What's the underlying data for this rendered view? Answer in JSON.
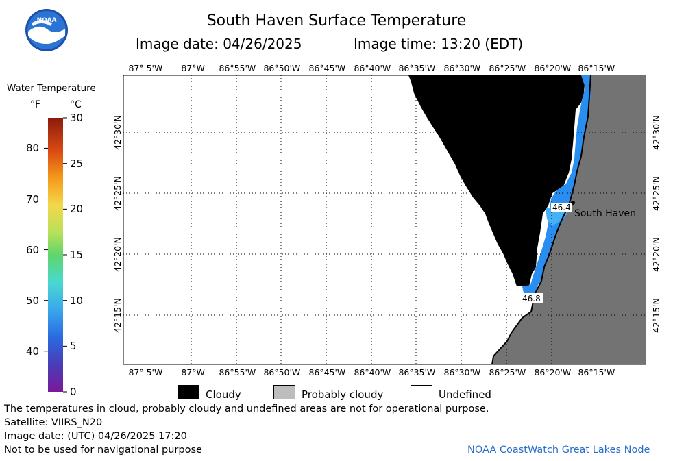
{
  "header": {
    "title": "South Haven Surface Temperature",
    "image_date": "Image date: 04/26/2025",
    "image_time": "Image time: 13:20 (EDT)"
  },
  "logo": {
    "text": "NOAA",
    "icon": "noaa-logo"
  },
  "colorbar": {
    "title": "Water Temperature",
    "unit_f": "°F",
    "unit_c": "°C",
    "f_ticks": [
      "80",
      "70",
      "60",
      "50",
      "40"
    ],
    "c_ticks": [
      "30",
      "25",
      "20",
      "15",
      "10",
      "5",
      "0"
    ]
  },
  "map": {
    "lon_labels": [
      "87° 5'W",
      "87°W",
      "86°55'W",
      "86°50'W",
      "86°45'W",
      "86°40'W",
      "86°35'W",
      "86°30'W",
      "86°25'W",
      "86°20'W",
      "86°15'W"
    ],
    "lat_labels": [
      "42°30'N",
      "42°25'N",
      "42°20'N",
      "42°15'N"
    ],
    "place_label": "South Haven",
    "readings": [
      "46.4",
      "46.8"
    ],
    "colors": {
      "cloud": "#000000",
      "land": "#737373",
      "water_cool": "#2a8df0",
      "water_light": "#45b2f5",
      "undefined": "#ffffff"
    }
  },
  "legend": {
    "cloudy": "Cloudy",
    "probably_cloudy": "Probably cloudy",
    "undefined": "Undefined"
  },
  "footer": {
    "line1": "The temperatures in cloud, probably cloudy and undefined areas are not for operational purpose.",
    "line2": "Satellite: VIIRS_N20",
    "line3": "Image date: (UTC) 04/26/2025  17:20",
    "line4": "Not to be used for navigational purpose",
    "credit": "NOAA CoastWatch Great Lakes Node"
  }
}
